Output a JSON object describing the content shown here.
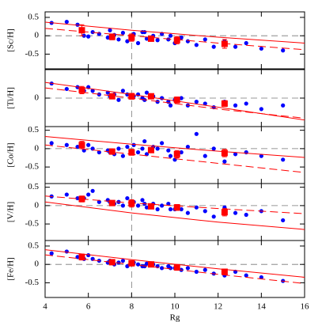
{
  "chart_data": [
    {
      "type": "scatter",
      "ylabel": "[Sc/H]",
      "color": "#0000ff",
      "x": [
        4.3,
        5.0,
        5.5,
        5.8,
        6.2,
        6.5,
        6.9,
        7.2,
        7.4,
        7.6,
        7.8,
        8.1,
        8.3,
        8.5,
        8.7,
        9.0,
        9.2,
        9.4,
        9.7,
        10.0,
        10.3,
        10.6,
        11.0,
        11.4,
        11.8,
        12.3,
        12.8,
        13.3,
        14.0,
        15.0,
        7.0,
        8.6,
        9.8,
        6.0
      ],
      "values": [
        0.35,
        0.38,
        0.3,
        0.0,
        0.1,
        0.05,
        -0.05,
        0.02,
        -0.1,
        0.08,
        -0.15,
        0.05,
        -0.2,
        0.1,
        -0.08,
        0.0,
        -0.12,
        0.05,
        -0.1,
        -0.2,
        -0.05,
        -0.15,
        -0.25,
        -0.1,
        -0.3,
        -0.15,
        -0.3,
        -0.2,
        -0.35,
        -0.4,
        0.15,
        0.1,
        0.0,
        -0.02
      ],
      "binned": {
        "color": "#ff0000",
        "x": [
          5.7,
          7.1,
          8.0,
          8.9,
          10.1,
          12.3
        ],
        "values": [
          0.15,
          -0.03,
          -0.05,
          -0.08,
          -0.12,
          -0.22
        ],
        "errors": [
          0.15,
          0.08,
          0.1,
          0.07,
          0.1,
          0.12
        ]
      },
      "lines": [
        {
          "color": "#ff0000",
          "style": "solid",
          "x": [
            4,
            8,
            12,
            16
          ],
          "values": [
            0.37,
            0.15,
            -0.04,
            -0.2
          ]
        },
        {
          "color": "#ff0000",
          "style": "dashed",
          "x": [
            4,
            8,
            12,
            16
          ],
          "values": [
            0.2,
            0.0,
            -0.2,
            -0.38
          ]
        }
      ],
      "hline": 0,
      "vline": 8,
      "xlim": [
        4,
        16
      ],
      "xticks": [
        4,
        6,
        8,
        10,
        12,
        14,
        16
      ],
      "ylim": [
        -0.9,
        0.65
      ],
      "yticks": [
        -0.5,
        0,
        0.5
      ]
    },
    {
      "type": "scatter",
      "ylabel": "[Ti/H]",
      "color": "#0000ff",
      "x": [
        4.3,
        5.0,
        5.5,
        5.8,
        6.2,
        6.5,
        6.9,
        7.2,
        7.4,
        7.6,
        7.8,
        8.1,
        8.3,
        8.5,
        8.7,
        9.0,
        9.2,
        9.4,
        9.7,
        10.0,
        10.3,
        10.6,
        11.0,
        11.4,
        11.8,
        12.3,
        12.8,
        13.3,
        14.0,
        15.0,
        7.0,
        8.6,
        9.8,
        6.0
      ],
      "values": [
        0.4,
        0.25,
        0.3,
        0.2,
        0.2,
        0.1,
        0.15,
        0.1,
        -0.05,
        0.2,
        0.1,
        0.05,
        0.1,
        0.0,
        0.15,
        0.05,
        -0.1,
        0.0,
        -0.1,
        -0.05,
        0.0,
        -0.2,
        -0.1,
        -0.15,
        -0.25,
        -0.1,
        -0.2,
        -0.15,
        -0.3,
        -0.2,
        0.05,
        -0.05,
        -0.2,
        0.3
      ],
      "binned": {
        "color": "#ff0000",
        "x": [
          5.7,
          7.1,
          8.0,
          8.9,
          10.1,
          12.3
        ],
        "values": [
          0.22,
          0.05,
          0.05,
          0.05,
          -0.05,
          -0.15
        ],
        "errors": [
          0.1,
          0.05,
          0.08,
          0.05,
          0.08,
          0.08
        ]
      },
      "lines": [
        {
          "color": "#ff0000",
          "style": "solid",
          "x": [
            4,
            8,
            12,
            16
          ],
          "values": [
            0.43,
            0.1,
            -0.25,
            -0.6
          ]
        },
        {
          "color": "#ff0000",
          "style": "dashed",
          "x": [
            4,
            8,
            12,
            16
          ],
          "values": [
            0.28,
            0.0,
            -0.3,
            -0.55
          ]
        }
      ],
      "hline": 0,
      "vline": 8,
      "xlim": [
        4,
        16
      ],
      "xticks": [
        4,
        6,
        8,
        10,
        12,
        14,
        16
      ],
      "ylim": [
        -0.78,
        0.78
      ],
      "yticks": [
        0
      ]
    },
    {
      "type": "scatter",
      "ylabel": "[Co/H]",
      "color": "#0000ff",
      "x": [
        4.3,
        5.0,
        5.5,
        5.8,
        6.2,
        6.5,
        6.9,
        7.2,
        7.4,
        7.6,
        7.8,
        8.1,
        8.3,
        8.5,
        8.7,
        9.0,
        9.2,
        9.4,
        9.7,
        10.0,
        10.3,
        10.6,
        11.0,
        11.4,
        11.8,
        12.3,
        12.8,
        13.3,
        14.0,
        15.0,
        7.0,
        8.6,
        9.8,
        6.0
      ],
      "values": [
        0.15,
        0.1,
        0.05,
        -0.05,
        0.0,
        -0.1,
        -0.05,
        -0.15,
        0.0,
        -0.2,
        0.05,
        0.1,
        -0.1,
        0.0,
        -0.15,
        0.05,
        0.0,
        0.15,
        -0.05,
        -0.3,
        -0.1,
        0.05,
        0.4,
        -0.2,
        0.0,
        -0.35,
        -0.15,
        -0.1,
        -0.2,
        -0.3,
        -0.1,
        0.2,
        -0.2,
        0.1
      ],
      "binned": {
        "color": "#ff0000",
        "x": [
          5.7,
          7.1,
          8.0,
          8.9,
          10.1,
          12.3
        ],
        "values": [
          0.1,
          -0.08,
          -0.1,
          -0.04,
          -0.15,
          -0.12
        ],
        "errors": [
          0.1,
          0.06,
          0.08,
          0.05,
          0.1,
          0.1
        ]
      },
      "lines": [
        {
          "color": "#ff0000",
          "style": "solid",
          "x": [
            4,
            8,
            12,
            16
          ],
          "values": [
            0.33,
            0.12,
            -0.07,
            -0.24
          ]
        },
        {
          "color": "#ff0000",
          "style": "dashed",
          "x": [
            4,
            8,
            12,
            16
          ],
          "values": [
            0.1,
            -0.15,
            -0.4,
            -0.65
          ]
        }
      ],
      "hline": 0,
      "vline": 8,
      "xlim": [
        4,
        16
      ],
      "xticks": [
        4,
        6,
        8,
        10,
        12,
        14,
        16
      ],
      "ylim": [
        -0.95,
        0.6
      ],
      "yticks": [
        -0.5,
        0,
        0.5
      ]
    },
    {
      "type": "scatter",
      "ylabel": "[V/H]",
      "color": "#0000ff",
      "x": [
        4.3,
        5.0,
        5.5,
        5.8,
        6.2,
        6.5,
        6.9,
        7.2,
        7.4,
        7.6,
        7.8,
        8.1,
        8.3,
        8.5,
        8.7,
        9.0,
        9.2,
        9.4,
        9.7,
        10.0,
        10.3,
        10.6,
        11.0,
        11.4,
        11.8,
        12.3,
        12.8,
        13.3,
        14.0,
        15.0,
        7.0,
        8.6,
        9.8,
        6.0
      ],
      "values": [
        0.25,
        0.3,
        0.2,
        0.2,
        0.4,
        0.1,
        0.15,
        0.05,
        0.1,
        0.0,
        0.2,
        0.1,
        0.0,
        0.15,
        -0.05,
        0.05,
        -0.1,
        0.0,
        0.05,
        -0.1,
        -0.1,
        -0.2,
        -0.05,
        -0.15,
        -0.3,
        -0.05,
        -0.2,
        -0.25,
        -0.15,
        -0.4,
        0.1,
        0.05,
        -0.1,
        0.3
      ],
      "binned": {
        "color": "#ff0000",
        "x": [
          5.7,
          7.1,
          8.0,
          8.9,
          10.1,
          12.3
        ],
        "values": [
          0.18,
          0.07,
          0.06,
          -0.02,
          -0.05,
          -0.18
        ],
        "errors": [
          0.08,
          0.05,
          0.1,
          0.05,
          0.08,
          0.1
        ]
      },
      "lines": [
        {
          "color": "#ff0000",
          "style": "dashed",
          "x": [
            4,
            8,
            12,
            16
          ],
          "values": [
            0.26,
            0.07,
            -0.08,
            -0.22
          ]
        },
        {
          "color": "#ff0000",
          "style": "solid",
          "x": [
            4,
            8,
            12,
            16
          ],
          "values": [
            0.1,
            -0.2,
            -0.45,
            -0.65
          ]
        }
      ],
      "hline": 0,
      "vline": 8,
      "xlim": [
        4,
        16
      ],
      "xticks": [
        4,
        6,
        8,
        10,
        12,
        14,
        16
      ],
      "ylim": [
        -0.95,
        0.6
      ],
      "yticks": [
        -0.5,
        0,
        0.5
      ]
    },
    {
      "type": "scatter",
      "ylabel": "[Fe/H]",
      "xlabel": "Rg",
      "color": "#0000ff",
      "x": [
        4.3,
        5.0,
        5.5,
        5.8,
        6.2,
        6.5,
        6.9,
        7.2,
        7.4,
        7.6,
        7.8,
        8.1,
        8.3,
        8.5,
        8.7,
        9.0,
        9.2,
        9.4,
        9.7,
        10.0,
        10.3,
        10.6,
        11.0,
        11.4,
        11.8,
        12.3,
        12.8,
        13.3,
        14.0,
        15.0,
        7.0,
        8.6,
        9.8,
        6.0
      ],
      "values": [
        0.3,
        0.35,
        0.2,
        0.15,
        0.15,
        0.1,
        0.05,
        0.0,
        0.05,
        0.1,
        -0.05,
        0.05,
        0.0,
        -0.05,
        0.02,
        0.0,
        -0.05,
        -0.1,
        -0.05,
        -0.1,
        -0.15,
        -0.1,
        -0.2,
        -0.15,
        -0.25,
        -0.3,
        -0.2,
        -0.3,
        -0.35,
        -0.45,
        0.1,
        -0.05,
        -0.1,
        0.25
      ],
      "binned": {
        "color": "#ff0000",
        "x": [
          5.7,
          7.1,
          8.0,
          8.9,
          10.1,
          12.3
        ],
        "values": [
          0.2,
          0.06,
          0.03,
          0.0,
          -0.08,
          -0.2
        ],
        "errors": [
          0.08,
          0.05,
          0.06,
          0.04,
          0.08,
          0.06
        ]
      },
      "lines": [
        {
          "color": "#ff0000",
          "style": "solid",
          "x": [
            4,
            8,
            12,
            16
          ],
          "values": [
            0.4,
            0.13,
            -0.12,
            -0.35
          ]
        },
        {
          "color": "#ff0000",
          "style": "dashed",
          "x": [
            4,
            8,
            12,
            16
          ],
          "values": [
            0.26,
            0.0,
            -0.27,
            -0.52
          ]
        }
      ],
      "hline": 0,
      "vline": 8,
      "xlim": [
        4,
        16
      ],
      "xticks": [
        4,
        6,
        8,
        10,
        12,
        14,
        16
      ],
      "ylim": [
        -0.9,
        0.65
      ],
      "yticks": [
        -0.5,
        0,
        0.5
      ]
    }
  ]
}
